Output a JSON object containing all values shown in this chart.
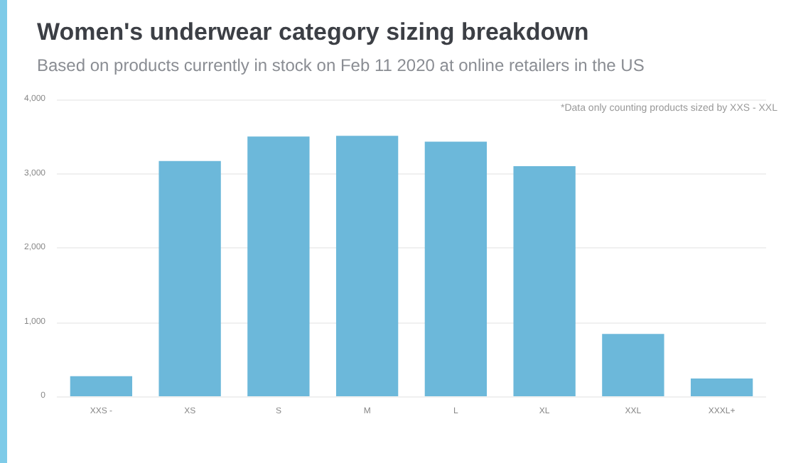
{
  "chart_data": {
    "type": "bar",
    "title": "Women's underwear category sizing breakdown",
    "subtitle": "Based on products currently in stock on Feb 11 2020 at online retailers in the US",
    "annotations": [
      "*Data only counting products sized by XXS - XXL"
    ],
    "categories": [
      "XXS -",
      "XS",
      "S",
      "M",
      "L",
      "XL",
      "XXL",
      "XXXL+"
    ],
    "values": [
      270,
      3170,
      3500,
      3510,
      3430,
      3100,
      840,
      240
    ],
    "color": "#6cb8da",
    "ylim": [
      0,
      4000
    ],
    "yticks": [
      0,
      {
        "value": 1000,
        "label": "1,000"
      },
      {
        "value": 2000,
        "label": "2,000"
      },
      {
        "value": 3000,
        "label": "3,000"
      },
      {
        "value": 4000,
        "label": "4,000"
      }
    ],
    "grid": "y"
  }
}
